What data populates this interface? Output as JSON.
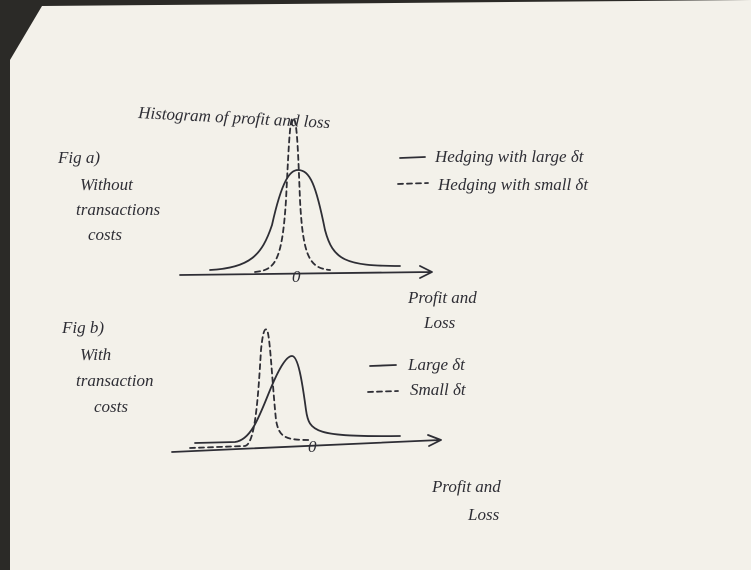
{
  "title": "Histogram of profit and loss",
  "figures": [
    {
      "label": "Fig a)",
      "caption": [
        "Without",
        "transactions",
        "costs"
      ],
      "legend": [
        "Hedging with large δt",
        "Hedging with small δt"
      ],
      "origin": "0",
      "x_axis_label": [
        "Profit and",
        "Loss"
      ]
    },
    {
      "label": "Fig b)",
      "caption": [
        "With",
        "transaction",
        "costs"
      ],
      "legend": [
        "Large δt",
        "Small δt"
      ],
      "origin": "0",
      "x_axis_label": [
        "Profit and",
        "Loss"
      ]
    }
  ]
}
